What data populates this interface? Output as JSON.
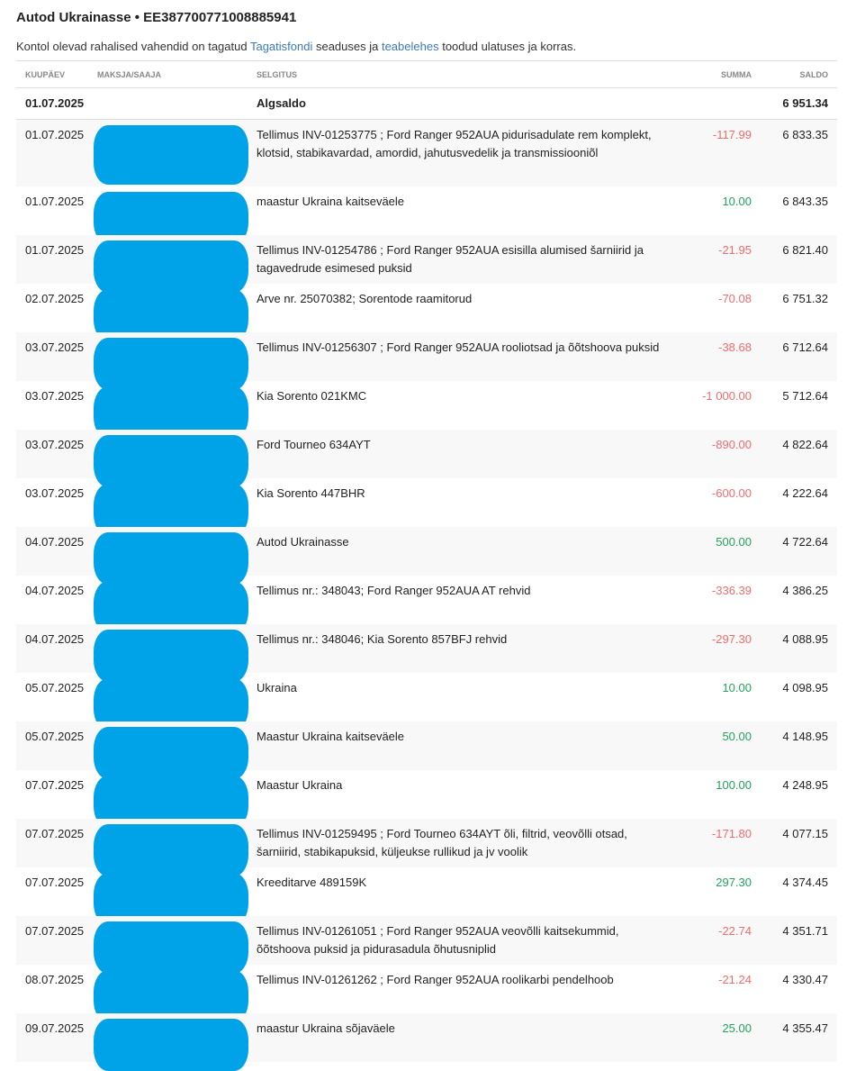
{
  "title": "Autod Ukrainasse • EE387700771008885941",
  "note": {
    "pre": "Kontol olevad rahalised vahendid on tagatud ",
    "link1": "Tagatisfondi",
    "mid": " seaduses ja ",
    "link2": "teabelehes",
    "post": " toodud ulatuses ja korras."
  },
  "headers": {
    "date": "KUUPÄEV",
    "payer": "MAKSJA/SAAJA",
    "desc": "SELGITUS",
    "sum": "SUMMA",
    "balance": "SALDO"
  },
  "opening": {
    "date": "01.07.2025",
    "desc": "Algsaldo",
    "balance": "6 951.34"
  },
  "colors": {
    "negative": "#f06c6c",
    "positive": "#22a35c",
    "redaction": "#00a2e8",
    "link": "#3a78c2"
  },
  "transactions": [
    {
      "date": "01.07.2025",
      "desc": "Tellimus INV-01253775 ; Ford Ranger 952AUA pidurisadulate rem komplekt, klotsid, stabikavardad, amordid, jahutusvedelik ja transmissiooniõl",
      "sum": "-117.99",
      "balance": "6 833.35"
    },
    {
      "date": "01.07.2025",
      "desc": "maastur Ukraina kaitseväele",
      "sum": "10.00",
      "balance": "6 843.35"
    },
    {
      "date": "01.07.2025",
      "desc": "Tellimus INV-01254786 ; Ford Ranger 952AUA esisilla alumised šarniirid ja tagavedrude esimesed puksid",
      "sum": "-21.95",
      "balance": "6 821.40"
    },
    {
      "date": "02.07.2025",
      "desc": "Arve nr. 25070382; Sorentode raamitorud",
      "sum": "-70.08",
      "balance": "6 751.32"
    },
    {
      "date": "03.07.2025",
      "desc": "Tellimus INV-01256307 ; Ford Ranger 952AUA rooliotsad ja õõtshoova puksid",
      "sum": "-38.68",
      "balance": "6 712.64"
    },
    {
      "date": "03.07.2025",
      "desc": "Kia Sorento 021KMC",
      "sum": "-1 000.00",
      "balance": "5 712.64"
    },
    {
      "date": "03.07.2025",
      "desc": "Ford Tourneo 634AYT",
      "sum": "-890.00",
      "balance": "4 822.64"
    },
    {
      "date": "03.07.2025",
      "desc": "Kia Sorento 447BHR",
      "sum": "-600.00",
      "balance": "4 222.64"
    },
    {
      "date": "04.07.2025",
      "desc": "Autod Ukrainasse",
      "sum": "500.00",
      "balance": "4 722.64"
    },
    {
      "date": "04.07.2025",
      "desc": "Tellimus nr.: 348043; Ford Ranger 952AUA AT rehvid",
      "sum": "-336.39",
      "balance": "4 386.25"
    },
    {
      "date": "04.07.2025",
      "desc": "Tellimus nr.: 348046; Kia Sorento 857BFJ rehvid",
      "sum": "-297.30",
      "balance": "4 088.95"
    },
    {
      "date": "05.07.2025",
      "desc": "Ukraina",
      "sum": "10.00",
      "balance": "4 098.95"
    },
    {
      "date": "05.07.2025",
      "desc": "Maastur Ukraina kaitseväele",
      "sum": "50.00",
      "balance": "4 148.95"
    },
    {
      "date": "07.07.2025",
      "desc": "Maastur Ukraina",
      "sum": "100.00",
      "balance": "4 248.95"
    },
    {
      "date": "07.07.2025",
      "desc": "Tellimus INV-01259495 ; Ford Tourneo 634AYT õli, filtrid, veovõlli otsad, šarniirid, stabikapuksid, küljeukse rullikud ja jv voolik",
      "sum": "-171.80",
      "balance": "4 077.15"
    },
    {
      "date": "07.07.2025",
      "desc": "Kreeditarve 489159K",
      "sum": "297.30",
      "balance": "4 374.45"
    },
    {
      "date": "07.07.2025",
      "desc": "Tellimus INV-01261051 ; Ford Ranger 952AUA veovõlli kaitsekummid, õõtshoova puksid ja pidurasadula õhutusniplid",
      "sum": "-22.74",
      "balance": "4 351.71"
    },
    {
      "date": "08.07.2025",
      "desc": "Tellimus INV-01261262 ; Ford Ranger 952AUA roolikarbi pendelhoob",
      "sum": "-21.24",
      "balance": "4 330.47"
    },
    {
      "date": "09.07.2025",
      "desc": "maastur Ukraina sõjaväele",
      "sum": "25.00",
      "balance": "4 355.47"
    }
  ]
}
